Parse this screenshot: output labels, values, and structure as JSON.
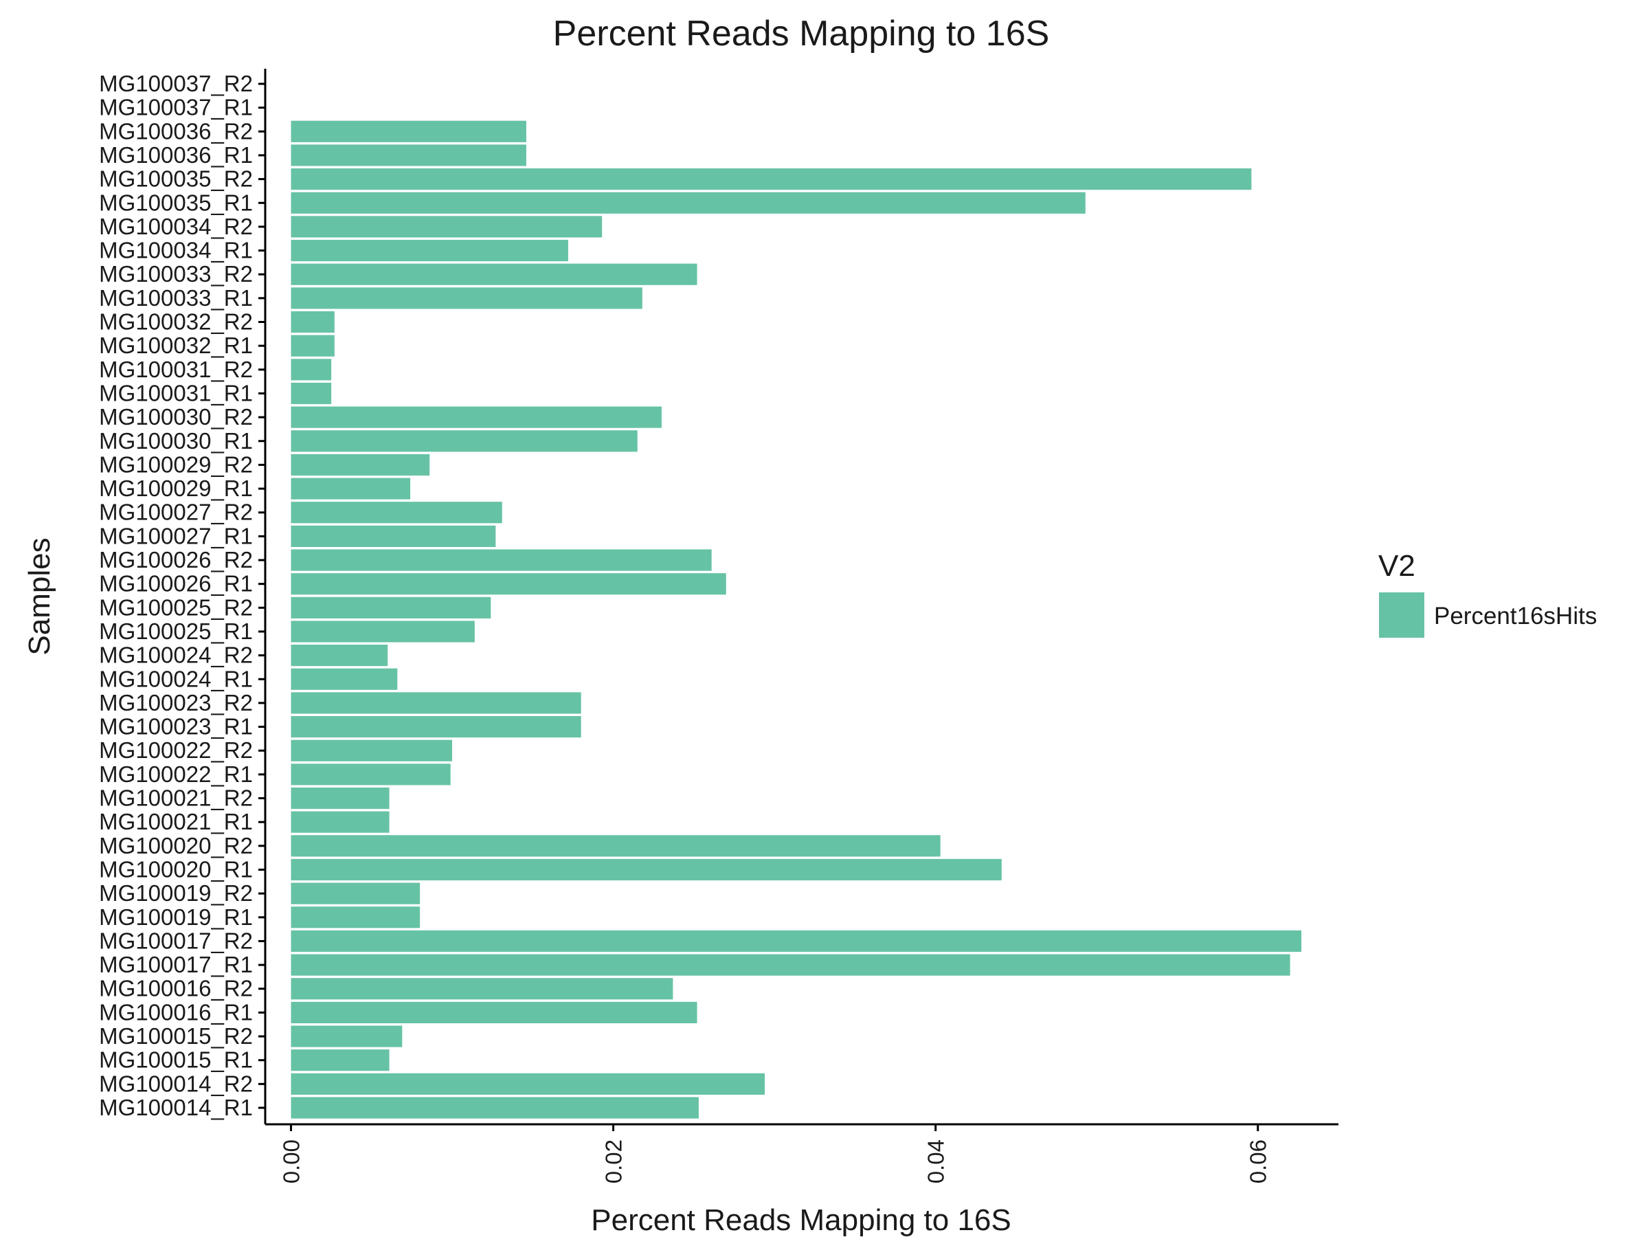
{
  "chart_data": {
    "type": "bar",
    "orientation": "horizontal",
    "title": "Percent Reads Mapping to 16S",
    "xlabel": "Percent Reads Mapping to 16S",
    "ylabel": "Samples",
    "xlim": [
      -0.0016,
      0.065
    ],
    "x_ticks": [
      "0.00",
      "0.02",
      "0.04",
      "0.06"
    ],
    "x_tick_values": [
      0,
      0.02,
      0.04,
      0.06
    ],
    "grid": false,
    "legend_position": "right",
    "legend": {
      "title": "V2",
      "entries": [
        "Percent16sHits"
      ]
    },
    "bar_color": "#66c2a5",
    "categories": [
      "MG100014_R1",
      "MG100014_R2",
      "MG100015_R1",
      "MG100015_R2",
      "MG100016_R1",
      "MG100016_R2",
      "MG100017_R1",
      "MG100017_R2",
      "MG100019_R1",
      "MG100019_R2",
      "MG100020_R1",
      "MG100020_R2",
      "MG100021_R1",
      "MG100021_R2",
      "MG100022_R1",
      "MG100022_R2",
      "MG100023_R1",
      "MG100023_R2",
      "MG100024_R1",
      "MG100024_R2",
      "MG100025_R1",
      "MG100025_R2",
      "MG100026_R1",
      "MG100026_R2",
      "MG100027_R1",
      "MG100027_R2",
      "MG100029_R1",
      "MG100029_R2",
      "MG100030_R1",
      "MG100030_R2",
      "MG100031_R1",
      "MG100031_R2",
      "MG100032_R1",
      "MG100032_R2",
      "MG100033_R1",
      "MG100033_R2",
      "MG100034_R1",
      "MG100034_R2",
      "MG100035_R1",
      "MG100035_R2",
      "MG100036_R1",
      "MG100036_R2",
      "MG100037_R1",
      "MG100037_R2"
    ],
    "series": [
      {
        "name": "Percent16sHits",
        "values": [
          0.0253,
          0.0294,
          0.0061,
          0.0069,
          0.0252,
          0.0237,
          0.062,
          0.0627,
          0.008,
          0.008,
          0.0441,
          0.0403,
          0.0061,
          0.0061,
          0.0099,
          0.01,
          0.018,
          0.018,
          0.0066,
          0.006,
          0.0114,
          0.0124,
          0.027,
          0.0261,
          0.0127,
          0.0131,
          0.0074,
          0.0086,
          0.0215,
          0.023,
          0.0025,
          0.0025,
          0.0027,
          0.0027,
          0.0218,
          0.0252,
          0.0172,
          0.0193,
          0.0493,
          0.0596,
          0.0146,
          0.0146,
          0.0,
          0.0
        ]
      }
    ]
  }
}
